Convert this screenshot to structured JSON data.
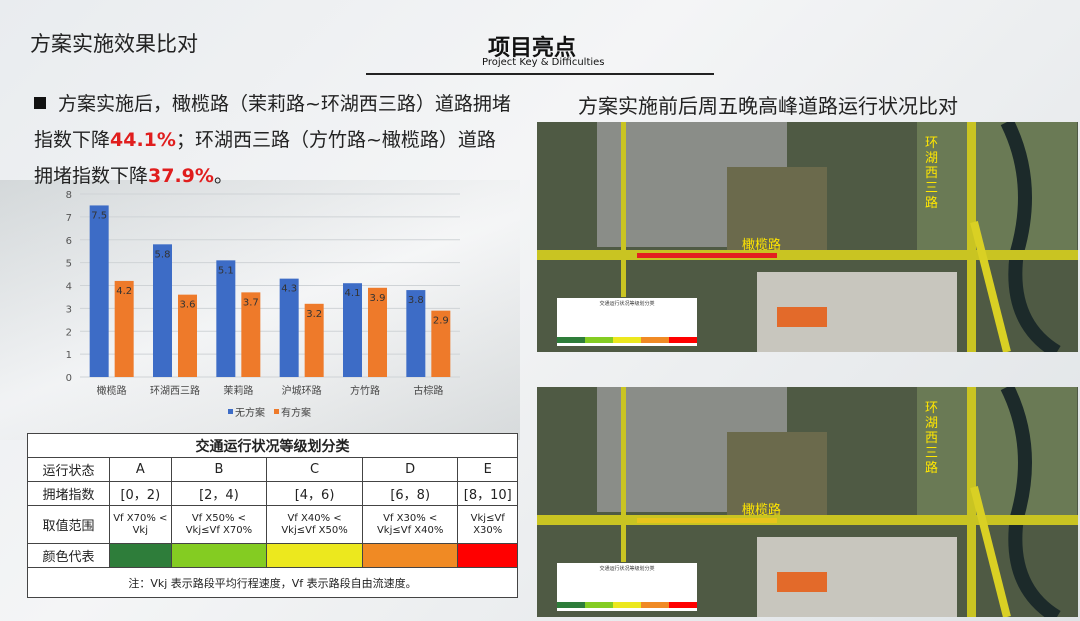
{
  "section_title": "方案实施效果比对",
  "header": {
    "title": "项目亮点",
    "subtitle": "Project Key & Difficulties"
  },
  "bullet": {
    "p1": "方案实施后，橄榄路（茉莉路~环湖西三路）道路拥堵指数下降",
    "v1": "44.1%",
    "p2": "；环湖西三路（方竹路~橄榄路）道路拥堵指数下降",
    "v2": "37.9%",
    "p3": "。"
  },
  "chart_data": {
    "type": "bar",
    "categories": [
      "橄榄路",
      "环湖西三路",
      "茉莉路",
      "沪城环路",
      "方竹路",
      "古棕路"
    ],
    "series": [
      {
        "name": "无方案",
        "values": [
          7.5,
          5.8,
          5.1,
          4.3,
          4.1,
          3.8
        ],
        "color": "#3d6cc6"
      },
      {
        "name": "有方案",
        "values": [
          4.2,
          3.6,
          3.7,
          3.2,
          3.9,
          2.9
        ],
        "color": "#ee7a2a"
      }
    ],
    "ylim": [
      0,
      8
    ],
    "yticks": [
      0,
      1,
      2,
      3,
      4,
      5,
      6,
      7,
      8
    ],
    "grid": true,
    "legend": "bottom"
  },
  "table": {
    "title": "交通运行状况等级划分类",
    "rows": [
      [
        "运行状态",
        "A",
        "B",
        "C",
        "D",
        "E"
      ],
      [
        "拥堵指数",
        "[0，2)",
        "[2，4)",
        "[4，6)",
        "[6，8)",
        "[8，10]"
      ],
      [
        "取值范围",
        "Vf X70% < Vkj",
        "Vf X50% < Vkj≤Vf X70%",
        "Vf X40% < Vkj≤Vf X50%",
        "Vf X30% < Vkj≤Vf X40%",
        "Vkj≤Vf X30%"
      ],
      [
        "颜色代表"
      ]
    ],
    "colors": [
      "#2e7d3a",
      "#84cc22",
      "#ece81e",
      "#f08a24",
      "#ff0000"
    ],
    "note": "注：Vkj 表示路段平均行程速度，Vf 表示路段自由流速度。"
  },
  "map": {
    "title": "方案实施前后周五晚高峰道路运行状况比对",
    "road1": "橄榄路",
    "road2": "环湖西三路",
    "legend_title": "交通运行状况等级划分类"
  }
}
